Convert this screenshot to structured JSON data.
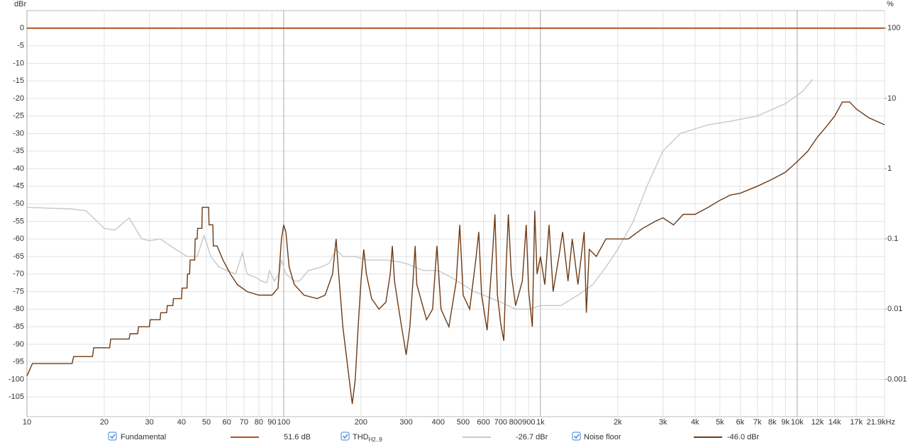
{
  "chart_data": {
    "type": "line",
    "y_label": "dBr",
    "y2_label": "%",
    "xscale": "log",
    "y2scale": "log",
    "grid": true,
    "xlim": [
      10,
      21900
    ],
    "ylim": [
      -110,
      5
    ],
    "y2lim": [
      0.000316,
      177.8
    ],
    "xticks": [
      10,
      20,
      30,
      40,
      50,
      60,
      70,
      80,
      90,
      100,
      200,
      300,
      400,
      500,
      600,
      700,
      800,
      900,
      {
        "value": 1000,
        "label": "1k"
      },
      {
        "value": 2000,
        "label": "2k"
      },
      {
        "value": 3000,
        "label": "3k"
      },
      {
        "value": 4000,
        "label": "4k"
      },
      {
        "value": 5000,
        "label": "5k"
      },
      {
        "value": 6000,
        "label": "6k"
      },
      {
        "value": 7000,
        "label": "7k"
      },
      {
        "value": 8000,
        "label": "8k"
      },
      {
        "value": 9000,
        "label": "9k"
      },
      {
        "value": 10000,
        "label": "10k"
      },
      {
        "value": 12000,
        "label": "12k"
      },
      {
        "value": 14000,
        "label": "14k"
      },
      {
        "value": 17000,
        "label": "17k"
      },
      {
        "value": 21900,
        "label": "21.9kHz"
      }
    ],
    "yticks": [
      0,
      -5,
      -10,
      -15,
      -20,
      -25,
      -30,
      -35,
      -40,
      -45,
      -50,
      -55,
      -60,
      -65,
      -70,
      -75,
      -80,
      -85,
      -90,
      -95,
      -100,
      -105
    ],
    "y2ticks": [
      100,
      10,
      1,
      0.1,
      0.01,
      0.001
    ],
    "series": [
      {
        "name": "Fundamental",
        "color": "#b4501e",
        "readout": "51.6 dB",
        "x": [
          10,
          21900
        ],
        "values": [
          0,
          0
        ]
      },
      {
        "name": "THD",
        "name_sub": "H2..9",
        "color": "#c8c8c8",
        "readout": "-26.7 dBr",
        "x": [
          10,
          15,
          17,
          20,
          22,
          25,
          28,
          30,
          33,
          38,
          42,
          46,
          49,
          52,
          56,
          60,
          65,
          69,
          72,
          78,
          82,
          86,
          88,
          92,
          96,
          98,
          102,
          110,
          115,
          125,
          140,
          150,
          160,
          170,
          190,
          210,
          230,
          250,
          280,
          300,
          350,
          400,
          450,
          500,
          550,
          600,
          700,
          800,
          900,
          1000,
          1200,
          1400,
          1600,
          1800,
          2000,
          2300,
          2600,
          3000,
          3500,
          4500,
          5500,
          7000,
          9000,
          10500,
          11500
        ],
        "values": [
          -51,
          -51.5,
          -52,
          -57,
          -57.5,
          -54,
          -60,
          -60.5,
          -60,
          -63,
          -65,
          -65,
          -59,
          -65,
          -68,
          -69,
          -70,
          -64,
          -70,
          -71,
          -72,
          -72.5,
          -69,
          -72,
          -70,
          -66,
          -70,
          -72,
          -72,
          -69,
          -68,
          -67,
          -63,
          -65,
          -65,
          -66,
          -66,
          -66,
          -66.5,
          -67,
          -69,
          -69,
          -71,
          -73,
          -75,
          -76,
          -78,
          -80,
          -80,
          -79,
          -79,
          -76,
          -73,
          -68,
          -63,
          -55,
          -45,
          -35,
          -30,
          -27.5,
          -26.5,
          -25,
          -21.5,
          -18,
          -14.5
        ]
      },
      {
        "name": "Noise floor",
        "color": "#6e3a14",
        "readout": "-46.0 dBr",
        "x": [
          10,
          10.5,
          15,
          15.2,
          18,
          18.2,
          21,
          21.2,
          25,
          25.2,
          27,
          27.2,
          30,
          30.2,
          33,
          33.2,
          35,
          35.2,
          37,
          37.2,
          40,
          40.2,
          42,
          42.2,
          43,
          43.2,
          45,
          45.2,
          46,
          46.2,
          48,
          48.2,
          51,
          51.2,
          53,
          53.2,
          55,
          58,
          62,
          66,
          72,
          80,
          90,
          95,
          98,
          100,
          102,
          105,
          110,
          120,
          135,
          145,
          155,
          160,
          163,
          170,
          180,
          185,
          190,
          195,
          200,
          205,
          210,
          220,
          235,
          250,
          260,
          265,
          270,
          285,
          300,
          310,
          320,
          325,
          330,
          360,
          380,
          395,
          410,
          440,
          470,
          485,
          500,
          530,
          560,
          575,
          590,
          620,
          650,
          665,
          680,
          700,
          720,
          735,
          750,
          770,
          800,
          850,
          880,
          900,
          930,
          950,
          970,
          1000,
          1040,
          1080,
          1120,
          1180,
          1220,
          1280,
          1330,
          1400,
          1480,
          1510,
          1550,
          1650,
          1800,
          2000,
          2200,
          2500,
          2800,
          3000,
          3300,
          3600,
          4000,
          4500,
          5000,
          5500,
          6000,
          7000,
          8000,
          9000,
          10000,
          11000,
          12000,
          13000,
          14000,
          15000,
          16000,
          17000,
          19000,
          21900
        ],
        "values": [
          -99,
          -95.5,
          -95.5,
          -93.5,
          -93.5,
          -91,
          -91,
          -88.5,
          -88.5,
          -87,
          -87,
          -85,
          -85,
          -83,
          -83,
          -81,
          -81,
          -79,
          -79,
          -77,
          -77,
          -74,
          -74,
          -70,
          -70,
          -66,
          -66,
          -60,
          -60,
          -57,
          -57,
          -51,
          -51,
          -56,
          -56,
          -62,
          -62,
          -66,
          -70,
          -73,
          -75,
          -76,
          -76,
          -74,
          -60,
          -56,
          -58,
          -68,
          -73,
          -76,
          -77,
          -76,
          -70,
          -60,
          -68,
          -85,
          -100,
          -107,
          -100,
          -85,
          -72,
          -63,
          -70,
          -77,
          -80,
          -78,
          -70,
          -62,
          -72,
          -83,
          -93,
          -85,
          -70,
          -62,
          -73,
          -83,
          -80,
          -62,
          -80,
          -85,
          -72,
          -56,
          -76,
          -80,
          -66,
          -58,
          -76,
          -86,
          -65,
          -53,
          -76,
          -84,
          -89,
          -68,
          -53,
          -70,
          -79,
          -72,
          -56,
          -75,
          -85,
          -52,
          -70,
          -65,
          -73,
          -56,
          -75,
          -65,
          -58,
          -72,
          -60,
          -73,
          -58,
          -81,
          -63,
          -65,
          -60,
          -60,
          -60,
          -57,
          -55,
          -54,
          -56,
          -53,
          -53,
          -51,
          -49,
          -47.5,
          -47,
          -45,
          -43,
          -41,
          -38,
          -35,
          -31,
          -28,
          -25,
          -21,
          -21,
          -23,
          -25.5,
          -27.5
        ]
      }
    ]
  }
}
